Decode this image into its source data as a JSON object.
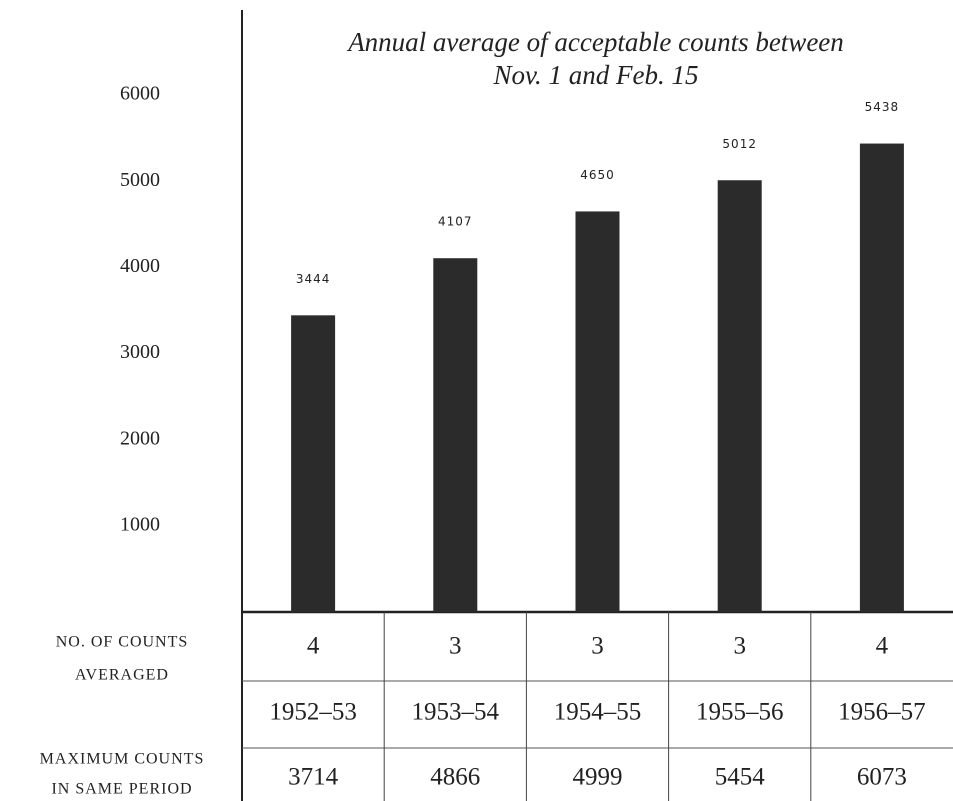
{
  "chart_data": {
    "type": "bar",
    "title": [
      "Annual average of acceptable counts between",
      "Nov. 1 and Feb. 15"
    ],
    "categories": [
      "1952–53",
      "1953–54",
      "1954–55",
      "1955–56",
      "1956–57"
    ],
    "values": [
      3444,
      4107,
      4650,
      5012,
      5438
    ],
    "color": "#2b2b2b",
    "ylim": [
      0,
      7000
    ],
    "yticks": [
      1000,
      2000,
      3000,
      4000,
      5000,
      6000
    ],
    "counts_label": [
      "NO. OF COUNTS",
      "AVERAGED"
    ],
    "counts_averaged": [
      4,
      3,
      3,
      3,
      4
    ],
    "max_label": [
      "MAXIMUM COUNTS",
      "IN SAME PERIOD"
    ],
    "max_counts": [
      3714,
      4866,
      4999,
      5454,
      6073
    ]
  }
}
